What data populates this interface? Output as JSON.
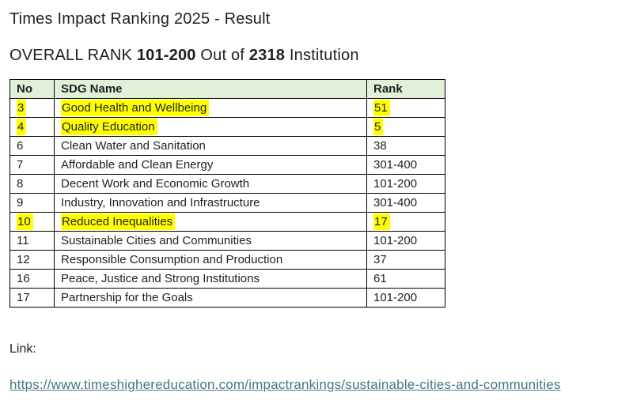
{
  "page": {
    "title": "Times Impact Ranking 2025 - Result",
    "subtitle": {
      "prefix": "OVERALL RANK ",
      "rank_value": "101-200",
      "middle": " Out of ",
      "total_value": "2318",
      "suffix": " Institution"
    },
    "link_label": "Link:",
    "link_url": "https://www.timeshighereducation.com/impactrankings/sustainable-cities-and-communities"
  },
  "table": {
    "headers": [
      "No",
      "SDG Name",
      "Rank"
    ],
    "rows": [
      {
        "no": "3",
        "name": "Good Health and Wellbeing",
        "rank": "51",
        "highlighted": true
      },
      {
        "no": "4",
        "name": "Quality Education",
        "rank": "5",
        "highlighted": true
      },
      {
        "no": "6",
        "name": "Clean Water and Sanitation",
        "rank": "38",
        "highlighted": false
      },
      {
        "no": "7",
        "name": "Affordable and Clean Energy",
        "rank": "301-400",
        "highlighted": false
      },
      {
        "no": "8",
        "name": "Decent Work and Economic Growth",
        "rank": "101-200",
        "highlighted": false
      },
      {
        "no": "9",
        "name": "Industry, Innovation and Infrastructure",
        "rank": "301-400",
        "highlighted": false
      },
      {
        "no": "10",
        "name": "Reduced Inequalities",
        "rank": "17",
        "highlighted": true
      },
      {
        "no": "11",
        "name": "Sustainable Cities and Communities",
        "rank": "101-200",
        "highlighted": false
      },
      {
        "no": "12",
        "name": "Responsible Consumption and Production",
        "rank": "37",
        "highlighted": false
      },
      {
        "no": "16",
        "name": "Peace, Justice and Strong Institutions",
        "rank": "61",
        "highlighted": false
      },
      {
        "no": "17",
        "name": "Partnership for the Goals",
        "rank": "101-200",
        "highlighted": false
      }
    ]
  },
  "colors": {
    "header_bg": "#e2efd9",
    "highlight": "#ffff00",
    "link": "#467586"
  }
}
